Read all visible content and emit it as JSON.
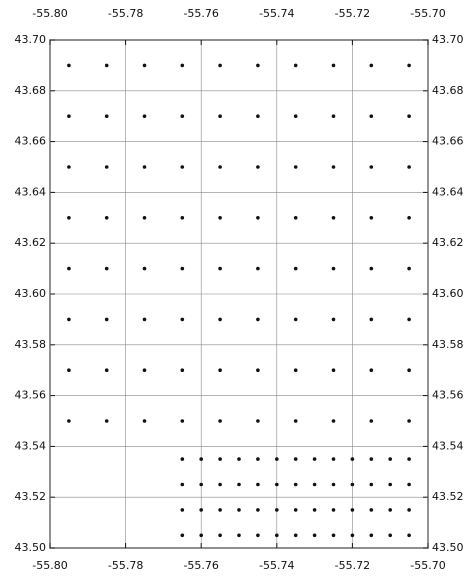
{
  "chart_data": {
    "type": "scatter",
    "color": "#111111",
    "grid": true,
    "xlim": [
      -55.8,
      -55.7
    ],
    "ylim": [
      43.5,
      43.7
    ],
    "xticks": [
      {
        "value": -55.8,
        "label": "-55.80"
      },
      {
        "value": -55.78,
        "label": "-55.78"
      },
      {
        "value": -55.76,
        "label": "-55.76"
      },
      {
        "value": -55.74,
        "label": "-55.74"
      },
      {
        "value": -55.72,
        "label": "-55.72"
      },
      {
        "value": -55.7,
        "label": "-55.70"
      }
    ],
    "yticks": [
      {
        "value": 43.5,
        "label": "43.50"
      },
      {
        "value": 43.52,
        "label": "43.52"
      },
      {
        "value": 43.54,
        "label": "43.54"
      },
      {
        "value": 43.56,
        "label": "43.56"
      },
      {
        "value": 43.58,
        "label": "43.58"
      },
      {
        "value": 43.6,
        "label": "43.60"
      },
      {
        "value": 43.62,
        "label": "43.62"
      },
      {
        "value": 43.64,
        "label": "43.64"
      },
      {
        "value": 43.66,
        "label": "43.66"
      },
      {
        "value": 43.68,
        "label": "43.68"
      },
      {
        "value": 43.7,
        "label": "43.70"
      }
    ],
    "x": [
      -55.795,
      -55.785,
      -55.775,
      -55.765,
      -55.755,
      -55.745,
      -55.735,
      -55.725,
      -55.715,
      -55.705,
      -55.795,
      -55.785,
      -55.775,
      -55.765,
      -55.755,
      -55.745,
      -55.735,
      -55.725,
      -55.715,
      -55.705,
      -55.795,
      -55.785,
      -55.775,
      -55.765,
      -55.755,
      -55.745,
      -55.735,
      -55.725,
      -55.715,
      -55.705,
      -55.795,
      -55.785,
      -55.775,
      -55.765,
      -55.755,
      -55.745,
      -55.735,
      -55.725,
      -55.715,
      -55.705,
      -55.795,
      -55.785,
      -55.775,
      -55.765,
      -55.755,
      -55.745,
      -55.735,
      -55.725,
      -55.715,
      -55.705,
      -55.795,
      -55.785,
      -55.775,
      -55.765,
      -55.755,
      -55.745,
      -55.735,
      -55.725,
      -55.715,
      -55.705,
      -55.795,
      -55.785,
      -55.775,
      -55.765,
      -55.755,
      -55.745,
      -55.735,
      -55.725,
      -55.715,
      -55.705,
      -55.795,
      -55.785,
      -55.775,
      -55.765,
      -55.755,
      -55.745,
      -55.735,
      -55.725,
      -55.715,
      -55.705,
      -55.765,
      -55.76,
      -55.755,
      -55.75,
      -55.745,
      -55.74,
      -55.735,
      -55.73,
      -55.725,
      -55.72,
      -55.715,
      -55.71,
      -55.705,
      -55.765,
      -55.76,
      -55.755,
      -55.75,
      -55.745,
      -55.74,
      -55.735,
      -55.73,
      -55.725,
      -55.72,
      -55.715,
      -55.71,
      -55.705,
      -55.765,
      -55.76,
      -55.755,
      -55.75,
      -55.745,
      -55.74,
      -55.735,
      -55.73,
      -55.725,
      -55.72,
      -55.715,
      -55.71,
      -55.705,
      -55.765,
      -55.76,
      -55.755,
      -55.75,
      -55.745,
      -55.74,
      -55.735,
      -55.73,
      -55.725,
      -55.72,
      -55.715,
      -55.71,
      -55.705
    ],
    "values": [
      43.69,
      43.69,
      43.69,
      43.69,
      43.69,
      43.69,
      43.69,
      43.69,
      43.69,
      43.69,
      43.67,
      43.67,
      43.67,
      43.67,
      43.67,
      43.67,
      43.67,
      43.67,
      43.67,
      43.67,
      43.65,
      43.65,
      43.65,
      43.65,
      43.65,
      43.65,
      43.65,
      43.65,
      43.65,
      43.65,
      43.63,
      43.63,
      43.63,
      43.63,
      43.63,
      43.63,
      43.63,
      43.63,
      43.63,
      43.63,
      43.61,
      43.61,
      43.61,
      43.61,
      43.61,
      43.61,
      43.61,
      43.61,
      43.61,
      43.61,
      43.59,
      43.59,
      43.59,
      43.59,
      43.59,
      43.59,
      43.59,
      43.59,
      43.59,
      43.59,
      43.57,
      43.57,
      43.57,
      43.57,
      43.57,
      43.57,
      43.57,
      43.57,
      43.57,
      43.57,
      43.55,
      43.55,
      43.55,
      43.55,
      43.55,
      43.55,
      43.55,
      43.55,
      43.55,
      43.55,
      43.535,
      43.535,
      43.535,
      43.535,
      43.535,
      43.535,
      43.535,
      43.535,
      43.535,
      43.535,
      43.535,
      43.535,
      43.535,
      43.525,
      43.525,
      43.525,
      43.525,
      43.525,
      43.525,
      43.525,
      43.525,
      43.525,
      43.525,
      43.525,
      43.525,
      43.525,
      43.515,
      43.515,
      43.515,
      43.515,
      43.515,
      43.515,
      43.515,
      43.515,
      43.515,
      43.515,
      43.515,
      43.515,
      43.515,
      43.505,
      43.505,
      43.505,
      43.505,
      43.505,
      43.505,
      43.505,
      43.505,
      43.505,
      43.505,
      43.505,
      43.505,
      43.505
    ]
  }
}
